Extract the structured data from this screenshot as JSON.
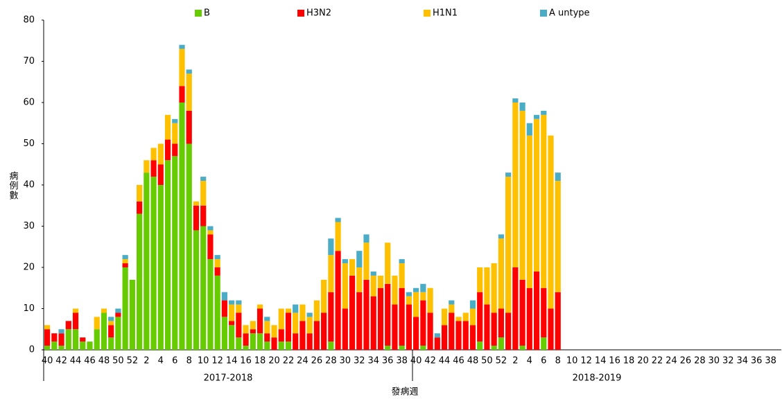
{
  "chart_data": {
    "type": "stacked_bar",
    "y_label": "病例數",
    "x_label": "發病週",
    "groups": [
      "2017-2018",
      "2018-2019"
    ],
    "categories": [
      "40",
      null,
      "42",
      null,
      "44",
      null,
      "46",
      null,
      "48",
      null,
      "50",
      null,
      "52",
      null,
      "2",
      null,
      "4",
      null,
      "6",
      null,
      "8",
      null,
      "10",
      null,
      "12",
      null,
      "14",
      null,
      "16",
      null,
      "18",
      null,
      "20",
      null,
      "22",
      null,
      "24",
      null,
      "26",
      null,
      "28",
      null,
      "30",
      null,
      "32",
      null,
      "34",
      null,
      "36",
      null,
      "38",
      null,
      "40",
      null,
      "42",
      null,
      "44",
      null,
      "46",
      null,
      "48",
      null,
      "50",
      null,
      "52",
      null,
      "2",
      null,
      "4",
      null,
      "6",
      null,
      "8",
      null,
      "10",
      null,
      "12",
      null,
      "14",
      null,
      "16",
      null,
      "18",
      null,
      "20",
      null,
      "22",
      null,
      "24",
      null,
      "26",
      null,
      "28",
      null,
      "30",
      null,
      "32",
      null,
      "34",
      null,
      "36",
      null,
      "38",
      null
    ],
    "series": [
      {
        "name": "B",
        "color": "#66cc00",
        "values": [
          1,
          2,
          1,
          5,
          5,
          2,
          2,
          5,
          9,
          3,
          8,
          20,
          17,
          33,
          43,
          42,
          40,
          46,
          47,
          60,
          50,
          29,
          30,
          22,
          18,
          8,
          6,
          3,
          1,
          4,
          4,
          2,
          0,
          2,
          2,
          0,
          0,
          0,
          0,
          0,
          2,
          0,
          0,
          0,
          0,
          0,
          0,
          0,
          1,
          0,
          1,
          0,
          0,
          1,
          0,
          0,
          0,
          0,
          0,
          0,
          0,
          2,
          0,
          1,
          3,
          0,
          0,
          1,
          0,
          0,
          3,
          0,
          0,
          null,
          null,
          null,
          null,
          null,
          null,
          null,
          null,
          null,
          null,
          null,
          null,
          null,
          null,
          null,
          null,
          null,
          null,
          null,
          null,
          null,
          null,
          null,
          null,
          null,
          null,
          null,
          null,
          null,
          null,
          null
        ]
      },
      {
        "name": "H3N2",
        "color": "#ff0000",
        "values": [
          4,
          2,
          3,
          2,
          4,
          1,
          0,
          0,
          0,
          3,
          1,
          1,
          0,
          3,
          0,
          4,
          5,
          5,
          3,
          4,
          8,
          6,
          5,
          6,
          2,
          4,
          1,
          6,
          3,
          1,
          6,
          2,
          3,
          3,
          7,
          4,
          7,
          4,
          7,
          9,
          12,
          24,
          10,
          18,
          14,
          17,
          13,
          15,
          15,
          11,
          14,
          11,
          8,
          11,
          9,
          3,
          6,
          9,
          7,
          7,
          6,
          12,
          11,
          8,
          7,
          9,
          20,
          16,
          15,
          19,
          12,
          10,
          14,
          null,
          null,
          null,
          null,
          null,
          null,
          null,
          null,
          null,
          null,
          null,
          null,
          null,
          null,
          null,
          null,
          null,
          null,
          null,
          null,
          null,
          null,
          null,
          null,
          null,
          null,
          null,
          null,
          null,
          null,
          null
        ]
      },
      {
        "name": "H1N1",
        "color": "#ffc000",
        "values": [
          1,
          0,
          0,
          0,
          1,
          0,
          0,
          3,
          1,
          1,
          0,
          1,
          0,
          4,
          3,
          3,
          5,
          6,
          5,
          9,
          9,
          1,
          6,
          1,
          2,
          0,
          4,
          2,
          2,
          2,
          1,
          3,
          3,
          5,
          1,
          5,
          4,
          4,
          5,
          8,
          9,
          7,
          11,
          4,
          6,
          9,
          5,
          3,
          10,
          7,
          6,
          2,
          6,
          2,
          6,
          0,
          4,
          2,
          1,
          2,
          4,
          6,
          9,
          12,
          17,
          33,
          40,
          41,
          37,
          37,
          42,
          42,
          27,
          null,
          null,
          null,
          null,
          null,
          null,
          null,
          null,
          null,
          null,
          null,
          null,
          null,
          null,
          null,
          null,
          null,
          null,
          null,
          null,
          null,
          null,
          null,
          null,
          null,
          null,
          null,
          null,
          null,
          null,
          null
        ]
      },
      {
        "name": "A untype",
        "color": "#4bacc6",
        "values": [
          0,
          0,
          1,
          0,
          0,
          0,
          0,
          0,
          0,
          1,
          1,
          1,
          0,
          0,
          0,
          0,
          0,
          0,
          1,
          1,
          1,
          0,
          1,
          1,
          1,
          2,
          1,
          1,
          0,
          0,
          0,
          1,
          0,
          0,
          0,
          2,
          0,
          1,
          0,
          0,
          4,
          1,
          1,
          0,
          4,
          2,
          1,
          0,
          0,
          0,
          1,
          1,
          1,
          2,
          0,
          1,
          0,
          1,
          0,
          0,
          2,
          0,
          0,
          0,
          1,
          1,
          1,
          2,
          3,
          1,
          1,
          0,
          2,
          null,
          null,
          null,
          null,
          null,
          null,
          null,
          null,
          null,
          null,
          null,
          null,
          null,
          null,
          null,
          null,
          null,
          null,
          null,
          null,
          null,
          null,
          null,
          null,
          null,
          null,
          null,
          null,
          null,
          null,
          null
        ]
      }
    ],
    "ylim": [
      0,
      80
    ],
    "yticks": [
      0,
      10,
      20,
      30,
      40,
      50,
      60,
      70,
      80
    ],
    "legend": "top"
  }
}
